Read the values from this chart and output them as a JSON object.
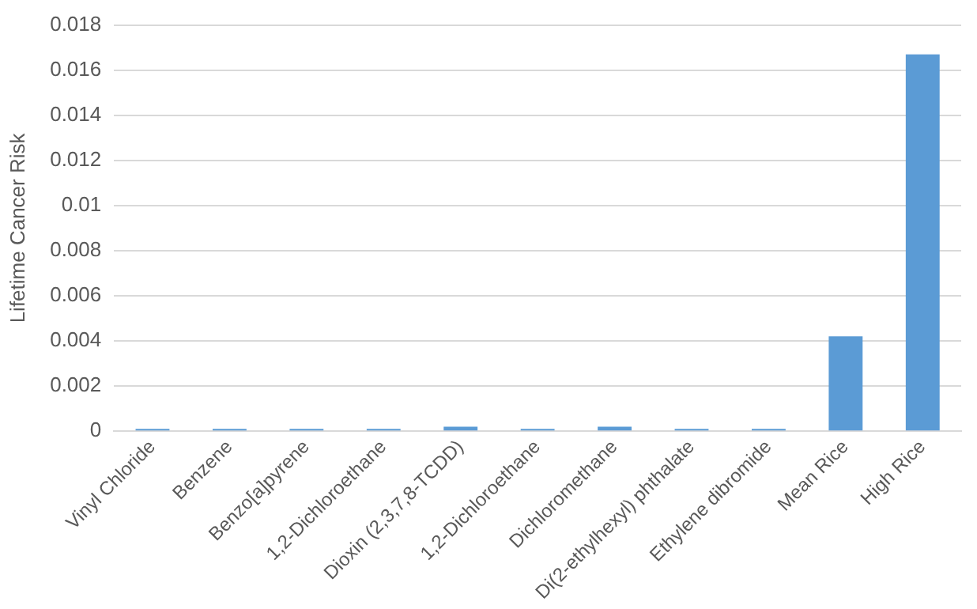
{
  "chart_data": {
    "type": "bar",
    "ylabel": "Lifetime Cancer Risk",
    "categories": [
      "Vinyl Chloride",
      "Benzene",
      "Benzo[a]pyrene",
      "1,2-Dichloroethane",
      "Dioxin (2,3,7,8-TCDD)",
      "1,2-Dichloroethane",
      "Dichloromethane",
      "Di(2-ethylhexyl) phthalate",
      "Ethylene dibromide",
      "Mean Rice",
      "High Rice"
    ],
    "values": [
      0.0001,
      0.0001,
      0.0001,
      0.0001,
      0.0002,
      0.0001,
      0.0002,
      0.0001,
      0.0001,
      0.0042,
      0.0167
    ],
    "color": "#5b9bd5",
    "ylim": [
      0,
      0.018
    ],
    "yticks": [
      0,
      0.002,
      0.004,
      0.006,
      0.008,
      0.01,
      0.012,
      0.014,
      0.016,
      0.018
    ],
    "grid": "y",
    "legend": false
  }
}
